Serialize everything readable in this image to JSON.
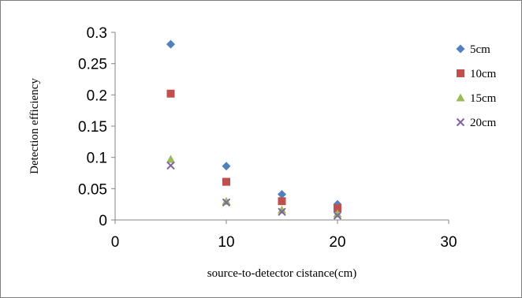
{
  "chart_data": {
    "type": "scatter",
    "xlabel": "source-to-detector cistance(cm)",
    "ylabel": "Detection efficiency",
    "xlim": [
      0,
      30
    ],
    "ylim": [
      0,
      0.3
    ],
    "x_ticks": [
      "0",
      "10",
      "20",
      "30"
    ],
    "y_ticks": [
      "0",
      "0.05",
      "0.1",
      "0.15",
      "0.2",
      "0.25",
      "0.3"
    ],
    "grid": false,
    "legend_position": "right",
    "series": [
      {
        "name": "5cm",
        "marker": "diamond",
        "color": "#4f81bd",
        "x": [
          5,
          10,
          15,
          20
        ],
        "y": [
          0.281,
          0.086,
          0.041,
          0.025
        ]
      },
      {
        "name": "10cm",
        "marker": "square",
        "color": "#c0504d",
        "x": [
          5,
          10,
          15,
          20
        ],
        "y": [
          0.202,
          0.061,
          0.03,
          0.019
        ]
      },
      {
        "name": "15cm",
        "marker": "triangle",
        "color": "#9bbb59",
        "x": [
          5,
          10,
          15,
          20
        ],
        "y": [
          0.097,
          0.03,
          0.016,
          0.01
        ]
      },
      {
        "name": "20cm",
        "marker": "x",
        "color": "#8064a2",
        "x": [
          5,
          10,
          15,
          20
        ],
        "y": [
          0.087,
          0.028,
          0.013,
          0.007
        ]
      }
    ]
  }
}
